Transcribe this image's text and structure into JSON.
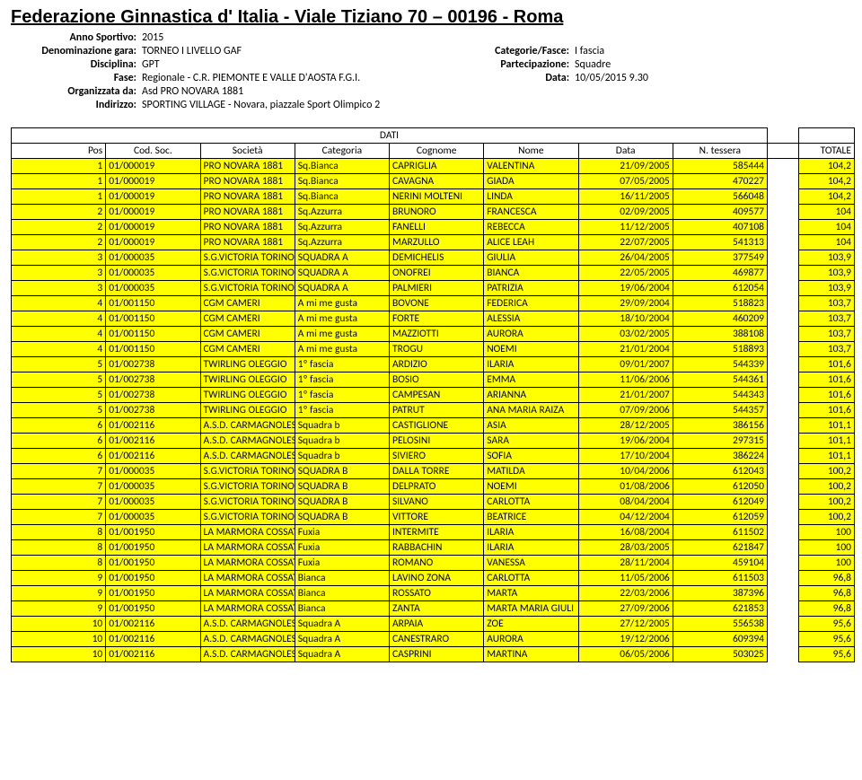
{
  "title": "Federazione Ginnastica d' Italia - Viale Tiziano 70 – 00196 - Roma",
  "meta": {
    "anno_label": "Anno Sportivo:",
    "anno": "2015",
    "denom_label": "Denominazione gara:",
    "denom": "TORNEO I LIVELLO GAF",
    "disc_label": "Disciplina:",
    "disc": "GPT",
    "fase_label": "Fase:",
    "fase": "Regionale - C.R. PIEMONTE E VALLE D'AOSTA F.G.I.",
    "org_label": "Organizzata da:",
    "org": "Asd PRO NOVARA 1881",
    "ind_label": "Indirizzo:",
    "ind": "SPORTING VILLAGE - Novara, piazzale Sport Olimpico 2",
    "catfasce_label": "Categorie/Fasce:",
    "catfasce": "I fascia",
    "part_label": "Partecipazione:",
    "part": "Squadre",
    "data_label": "Data:",
    "data": "10/05/2015 9.30"
  },
  "table": {
    "dati_label": "DATI",
    "headers": [
      "Pos",
      "Cod. Soc.",
      "Società",
      "Categoria",
      "Cognome",
      "Nome",
      "Data",
      "N. tessera",
      "",
      "TOTALE"
    ],
    "rows": [
      [
        "1",
        "01/000019",
        "PRO NOVARA 1881",
        "Sq.Bianca",
        "CAPRIGLIA",
        "VALENTINA",
        "21/09/2005",
        "585444",
        "",
        "104,2"
      ],
      [
        "1",
        "01/000019",
        "PRO NOVARA 1881",
        "Sq.Bianca",
        "CAVAGNA",
        "GIADA",
        "07/05/2005",
        "470227",
        "",
        "104,2"
      ],
      [
        "1",
        "01/000019",
        "PRO NOVARA 1881",
        "Sq.Bianca",
        "NERINI MOLTENI",
        "LINDA",
        "16/11/2005",
        "566048",
        "",
        "104,2"
      ],
      [
        "2",
        "01/000019",
        "PRO NOVARA 1881",
        "Sq.Azzurra",
        "BRUNORO",
        "FRANCESCA",
        "02/09/2005",
        "409577",
        "",
        "104"
      ],
      [
        "2",
        "01/000019",
        "PRO NOVARA 1881",
        "Sq.Azzurra",
        "FANELLI",
        "REBECCA",
        "11/12/2005",
        "407108",
        "",
        "104"
      ],
      [
        "2",
        "01/000019",
        "PRO NOVARA 1881",
        "Sq.Azzurra",
        "MARZULLO",
        "ALICE LEAH",
        "22/07/2005",
        "541313",
        "",
        "104"
      ],
      [
        "3",
        "01/000035",
        "S.G.VICTORIA TORINO",
        "SQUADRA A",
        "DEMICHELIS",
        "GIULIA",
        "26/04/2005",
        "377549",
        "",
        "103,9"
      ],
      [
        "3",
        "01/000035",
        "S.G.VICTORIA TORINO",
        "SQUADRA A",
        "ONOFREI",
        "BIANCA",
        "22/05/2005",
        "469877",
        "",
        "103,9"
      ],
      [
        "3",
        "01/000035",
        "S.G.VICTORIA TORINO",
        "SQUADRA A",
        "PALMIERI",
        "PATRIZIA",
        "19/06/2004",
        "612054",
        "",
        "103,9"
      ],
      [
        "4",
        "01/001150",
        "CGM CAMERI",
        "A mi me gusta",
        "BOVONE",
        "FEDERICA",
        "29/09/2004",
        "518823",
        "",
        "103,7"
      ],
      [
        "4",
        "01/001150",
        "CGM CAMERI",
        "A mi me gusta",
        "FORTE",
        "ALESSIA",
        "18/10/2004",
        "460209",
        "",
        "103,7"
      ],
      [
        "4",
        "01/001150",
        "CGM CAMERI",
        "A mi me gusta",
        "MAZZIOTTI",
        "AURORA",
        "03/02/2005",
        "388108",
        "",
        "103,7"
      ],
      [
        "4",
        "01/001150",
        "CGM CAMERI",
        "A mi me gusta",
        "TROGU",
        "NOEMI",
        "21/01/2004",
        "518893",
        "",
        "103,7"
      ],
      [
        "5",
        "01/002738",
        "TWIRLING OLEGGIO",
        "1º fascia",
        "ARDIZIO",
        "ILARIA",
        "09/01/2007",
        "544339",
        "",
        "101,6"
      ],
      [
        "5",
        "01/002738",
        "TWIRLING OLEGGIO",
        "1º fascia",
        "BOSIO",
        "EMMA",
        "11/06/2006",
        "544361",
        "",
        "101,6"
      ],
      [
        "5",
        "01/002738",
        "TWIRLING OLEGGIO",
        "1º fascia",
        "CAMPESAN",
        "ARIANNA",
        "21/01/2007",
        "544343",
        "",
        "101,6"
      ],
      [
        "5",
        "01/002738",
        "TWIRLING OLEGGIO",
        "1º fascia",
        "PATRUT",
        "ANA MARIA RAIZA",
        "07/09/2006",
        "544357",
        "",
        "101,6"
      ],
      [
        "6",
        "01/002116",
        "A.S.D. CARMAGNOLESE",
        "Squadra b",
        "CASTIGLIONE",
        "ASIA",
        "28/12/2005",
        "386156",
        "",
        "101,1"
      ],
      [
        "6",
        "01/002116",
        "A.S.D. CARMAGNOLESE",
        "Squadra b",
        "PELOSINI",
        "SARA",
        "19/06/2004",
        "297315",
        "",
        "101,1"
      ],
      [
        "6",
        "01/002116",
        "A.S.D. CARMAGNOLESE",
        "Squadra b",
        "SIVIERO",
        "SOFIA",
        "17/10/2004",
        "386224",
        "",
        "101,1"
      ],
      [
        "7",
        "01/000035",
        "S.G.VICTORIA TORINO",
        "SQUADRA B",
        "DALLA TORRE",
        "MATILDA",
        "10/04/2006",
        "612043",
        "",
        "100,2"
      ],
      [
        "7",
        "01/000035",
        "S.G.VICTORIA TORINO",
        "SQUADRA B",
        "DELPRATO",
        "NOEMI",
        "01/08/2006",
        "612050",
        "",
        "100,2"
      ],
      [
        "7",
        "01/000035",
        "S.G.VICTORIA TORINO",
        "SQUADRA B",
        "SILVANO",
        "CARLOTTA",
        "08/04/2004",
        "612049",
        "",
        "100,2"
      ],
      [
        "7",
        "01/000035",
        "S.G.VICTORIA TORINO",
        "SQUADRA B",
        "VITTORE",
        "BEATRICE",
        "04/12/2004",
        "612059",
        "",
        "100,2"
      ],
      [
        "8",
        "01/001950",
        "LA MARMORA COSSATO",
        "Fuxia",
        "INTERMITE",
        "ILARIA",
        "16/08/2004",
        "611502",
        "",
        "100"
      ],
      [
        "8",
        "01/001950",
        "LA MARMORA COSSATO",
        "Fuxia",
        "RABBACHIN",
        "ILARIA",
        "28/03/2005",
        "621847",
        "",
        "100"
      ],
      [
        "8",
        "01/001950",
        "LA MARMORA COSSATO",
        "Fuxia",
        "ROMANO",
        "VANESSA",
        "28/11/2004",
        "459104",
        "",
        "100"
      ],
      [
        "9",
        "01/001950",
        "LA MARMORA COSSATO",
        "Bianca",
        "LAVINO ZONA",
        "CARLOTTA",
        "11/05/2006",
        "611503",
        "",
        "96,8"
      ],
      [
        "9",
        "01/001950",
        "LA MARMORA COSSATO",
        "Bianca",
        "ROSSATO",
        "MARTA",
        "22/03/2006",
        "387396",
        "",
        "96,8"
      ],
      [
        "9",
        "01/001950",
        "LA MARMORA COSSATO",
        "Bianca",
        "ZANTA",
        "MARTA MARIA GIULI",
        "27/09/2006",
        "621853",
        "",
        "96,8"
      ],
      [
        "10",
        "01/002116",
        "A.S.D. CARMAGNOLESE",
        "Squadra A",
        "ARPAIA",
        "ZOE",
        "27/12/2005",
        "556538",
        "",
        "95,6"
      ],
      [
        "10",
        "01/002116",
        "A.S.D. CARMAGNOLESE",
        "Squadra A",
        "CANESTRARO",
        "AURORA",
        "19/12/2006",
        "609394",
        "",
        "95,6"
      ],
      [
        "10",
        "01/002116",
        "A.S.D. CARMAGNOLESE",
        "Squadra A",
        "CASPRINI",
        "MARTINA",
        "06/05/2006",
        "503025",
        "",
        "95,6"
      ]
    ]
  }
}
